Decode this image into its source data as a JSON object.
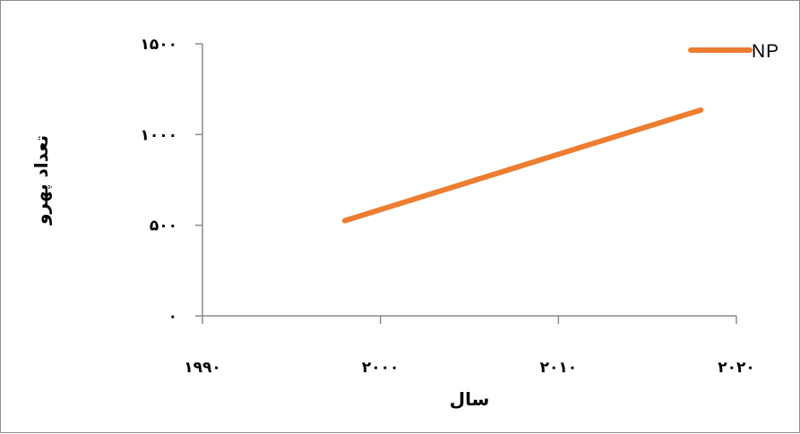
{
  "chart_data": {
    "type": "line",
    "title": "",
    "xlabel": "سال",
    "ylabel": "تعداد پهرو",
    "xlim": [
      1990,
      2020
    ],
    "ylim": [
      0,
      1500
    ],
    "x_ticks": [
      1990,
      2000,
      2010,
      2020
    ],
    "y_ticks": [
      0,
      500,
      1000,
      1500
    ],
    "x_tick_labels": [
      "۱۹۹۰",
      "۲۰۰۰",
      "۲۰۱۰",
      "۲۰۲۰"
    ],
    "y_tick_labels": [
      "۰",
      "۵۰۰",
      "۱۰۰۰",
      "۱۵۰۰"
    ],
    "grid": false,
    "legend_position": "top-right",
    "series": [
      {
        "name": "NP",
        "color": "#ED7D31",
        "x": [
          1998,
          2018
        ],
        "y": [
          525,
          1135
        ]
      }
    ]
  },
  "colors": {
    "axis": "#8c8c8c",
    "series_NP": "#ED7D31"
  }
}
